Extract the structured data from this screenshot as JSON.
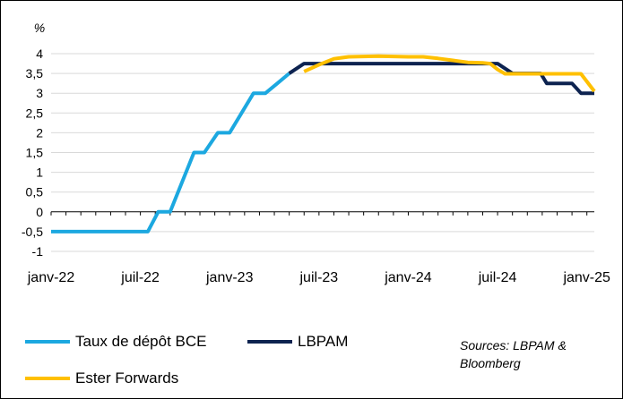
{
  "chart_data": {
    "type": "line",
    "ylabel": "%",
    "ylim": [
      -1,
      4
    ],
    "y_ticks": [
      "-1",
      "-0,5",
      "0",
      "0,5",
      "1",
      "1,5",
      "2",
      "2,5",
      "3",
      "3,5",
      "4"
    ],
    "x_ticks": [
      "janv-22",
      "juil-22",
      "janv-23",
      "juil-23",
      "janv-24",
      "juil-24",
      "janv-25"
    ],
    "xlim": [
      0,
      36.5
    ],
    "grid": true,
    "legend_position": "bottom",
    "series": [
      {
        "name": "Taux de dépôt BCE",
        "color": "#1ca8e0",
        "points": [
          [
            0,
            -0.5
          ],
          [
            6.5,
            -0.5
          ],
          [
            7.2,
            0
          ],
          [
            8.0,
            0
          ],
          [
            9.6,
            1.5
          ],
          [
            10.3,
            1.5
          ],
          [
            11.2,
            2.0
          ],
          [
            12.0,
            2.0
          ],
          [
            12.8,
            2.5
          ],
          [
            13.6,
            3.0
          ],
          [
            14.4,
            3.0
          ],
          [
            15.2,
            3.25
          ],
          [
            16.0,
            3.5
          ]
        ]
      },
      {
        "name": "LBPAM",
        "color": "#0d2350",
        "points": [
          [
            16.0,
            3.5
          ],
          [
            17.0,
            3.75
          ],
          [
            30.0,
            3.75
          ],
          [
            31.0,
            3.5
          ],
          [
            32.0,
            3.5
          ],
          [
            32.9,
            3.5
          ],
          [
            33.3,
            3.25
          ],
          [
            35.0,
            3.25
          ],
          [
            35.6,
            3.0
          ],
          [
            36.5,
            3.0
          ]
        ]
      },
      {
        "name": "Ester Forwards",
        "color": "#ffc000",
        "points": [
          [
            17.0,
            3.55
          ],
          [
            18.0,
            3.72
          ],
          [
            19.0,
            3.87
          ],
          [
            20.0,
            3.92
          ],
          [
            21.0,
            3.93
          ],
          [
            22.0,
            3.94
          ],
          [
            23.0,
            3.93
          ],
          [
            24.0,
            3.92
          ],
          [
            25.0,
            3.92
          ],
          [
            26.0,
            3.88
          ],
          [
            27.0,
            3.83
          ],
          [
            28.0,
            3.78
          ],
          [
            29.0,
            3.77
          ],
          [
            29.5,
            3.75
          ],
          [
            30.0,
            3.6
          ],
          [
            30.5,
            3.49
          ],
          [
            33.0,
            3.49
          ],
          [
            35.0,
            3.49
          ],
          [
            35.6,
            3.49
          ],
          [
            36.5,
            3.05
          ]
        ]
      }
    ]
  },
  "legend": {
    "items": [
      {
        "label": "Taux de dépôt BCE",
        "color": "#1ca8e0"
      },
      {
        "label": "LBPAM",
        "color": "#0d2350"
      },
      {
        "label": "Ester Forwards",
        "color": "#ffc000"
      }
    ]
  },
  "sources": "Sources: LBPAM & Bloomberg"
}
